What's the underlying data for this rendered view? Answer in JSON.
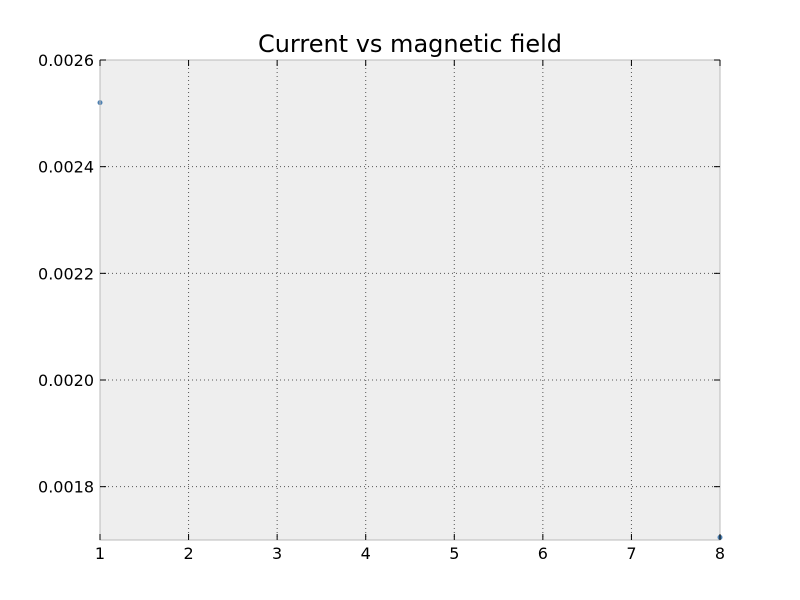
{
  "chart_data": {
    "type": "scatter",
    "title": "Current vs magnetic field",
    "xlabel": "",
    "ylabel": "",
    "xlim": [
      1,
      8
    ],
    "ylim": [
      0.0017,
      0.0026
    ],
    "x_ticks": [
      "1",
      "2",
      "3",
      "4",
      "5",
      "6",
      "7",
      "8"
    ],
    "y_ticks": [
      "0.0018",
      "0.0020",
      "0.0022",
      "0.0024",
      "0.0026"
    ],
    "grid": true,
    "series": [
      {
        "points": [
          {
            "x": 1,
            "y": 0.00252
          },
          {
            "x": 8,
            "y": 0.001705
          }
        ]
      }
    ],
    "colors": {
      "plot_background": "#eeeeee",
      "grid": "#555555",
      "axis": "#bbbbbb",
      "marker": "#4c7fb0"
    }
  }
}
